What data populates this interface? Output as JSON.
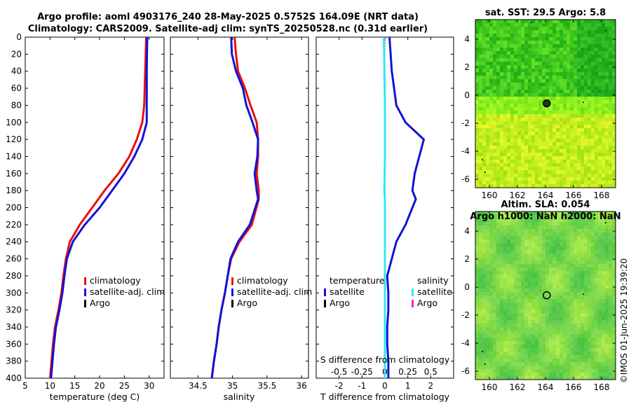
{
  "title": {
    "line1": "Argo profile: aoml 4903176_240 28-May-2025 0.5752S 164.09E (NRT data)",
    "line2": "Climatology: CARS2009. Satellite-adj clim: synTS_20250528.nc (0.31d earlier)"
  },
  "watermark": "©IMOS 01-Jun-2025 19:39:20",
  "colors": {
    "climatology": "#e81010",
    "satellite": "#1212d8",
    "argo": "#000000",
    "sat_salinity": "#33e6f0",
    "argo_salinity": "#ff22cc"
  },
  "chart_data": [
    {
      "id": "temperature",
      "type": "line",
      "xlabel": "temperature (deg C)",
      "xlim": [
        5,
        33
      ],
      "ylim": [
        400,
        0
      ],
      "xticks": [
        "5",
        "10",
        "15",
        "20",
        "25",
        "30"
      ],
      "yticks": [
        "0",
        "20",
        "40",
        "60",
        "80",
        "100",
        "120",
        "140",
        "160",
        "180",
        "200",
        "220",
        "240",
        "260",
        "280",
        "300",
        "320",
        "340",
        "360",
        "380",
        "400"
      ],
      "legend": [
        "climatology",
        "satellite-adj. clim",
        "Argo"
      ],
      "series": [
        {
          "name": "climatology",
          "color": "#e81010",
          "x": [
            29.4,
            29.3,
            29.2,
            29.1,
            29.0,
            28.6,
            27.5,
            26.0,
            23.8,
            21.0,
            18.5,
            16.0,
            14.0,
            13.2,
            12.7,
            12.3,
            11.7,
            11.0,
            10.6,
            10.3,
            10.0
          ],
          "y": [
            0,
            20,
            40,
            60,
            80,
            100,
            120,
            140,
            160,
            180,
            200,
            220,
            240,
            260,
            280,
            300,
            320,
            340,
            360,
            380,
            400
          ]
        },
        {
          "name": "satellite-adj. clim",
          "color": "#1212d8",
          "x": [
            29.6,
            29.55,
            29.5,
            29.5,
            29.5,
            29.5,
            28.6,
            27.0,
            25.0,
            22.5,
            20.0,
            17.0,
            14.6,
            13.4,
            12.9,
            12.5,
            11.9,
            11.2,
            10.8,
            10.5,
            10.2
          ],
          "y": [
            0,
            20,
            40,
            60,
            80,
            100,
            120,
            140,
            160,
            180,
            200,
            220,
            240,
            260,
            280,
            300,
            320,
            340,
            360,
            380,
            400
          ]
        }
      ]
    },
    {
      "id": "salinity",
      "type": "line",
      "xlabel": "salinity",
      "xlim": [
        34.1,
        36.1
      ],
      "ylim": [
        400,
        0
      ],
      "xticks": [
        "34.5",
        "35",
        "35.5",
        "36"
      ],
      "legend": [
        "climatology",
        "satellite-adj. clim",
        "Argo"
      ],
      "series": [
        {
          "name": "climatology",
          "color": "#e81010",
          "x": [
            35.03,
            35.05,
            35.08,
            35.18,
            35.26,
            35.35,
            35.37,
            35.37,
            35.35,
            35.38,
            35.38,
            35.28,
            35.1,
            34.98,
            34.93,
            34.89,
            34.84,
            34.8,
            34.77,
            34.73,
            34.7
          ],
          "y": [
            0,
            20,
            40,
            60,
            80,
            100,
            120,
            140,
            160,
            180,
            190,
            220,
            240,
            260,
            280,
            300,
            320,
            340,
            360,
            380,
            400
          ]
        },
        {
          "name": "satellite-adj. clim",
          "color": "#1212d8",
          "x": [
            34.98,
            34.99,
            35.05,
            35.15,
            35.2,
            35.29,
            35.37,
            35.36,
            35.32,
            35.35,
            35.37,
            35.25,
            35.08,
            34.97,
            34.93,
            34.89,
            34.84,
            34.8,
            34.77,
            34.73,
            34.7
          ],
          "y": [
            0,
            20,
            40,
            60,
            80,
            100,
            120,
            140,
            160,
            180,
            190,
            220,
            240,
            260,
            280,
            300,
            320,
            340,
            360,
            380,
            400
          ]
        }
      ]
    },
    {
      "id": "difference",
      "type": "line",
      "xlabel": "T difference from climatology",
      "xlim_T": [
        -3,
        3
      ],
      "ylim": [
        400,
        0
      ],
      "xticks": [
        "-2",
        "-1",
        "0",
        "1",
        "2"
      ],
      "top_axis_label": "S difference from climatology",
      "top_xticks": [
        "-0.5",
        "-0.25",
        "0",
        "0.25",
        "0.5"
      ],
      "legend_left_title": "temperature",
      "legend_right_title": "salinity",
      "legend_left": [
        "satellite",
        "Argo"
      ],
      "legend_right": [
        "satellite",
        "Argo"
      ],
      "series": [
        {
          "name": "temperature satellite",
          "color": "#1212d8",
          "x": [
            0.2,
            0.25,
            0.3,
            0.4,
            0.5,
            0.9,
            1.7,
            1.5,
            1.3,
            1.2,
            1.35,
            0.9,
            0.5,
            0.3,
            0.1,
            0.15,
            0.15,
            0.1,
            0.1,
            0.15,
            0.15
          ],
          "y": [
            0,
            20,
            40,
            60,
            80,
            100,
            120,
            140,
            160,
            180,
            190,
            220,
            240,
            260,
            280,
            300,
            320,
            340,
            360,
            380,
            400
          ]
        },
        {
          "name": "salinity satellite",
          "color": "#33e6f0",
          "x": [
            -0.05,
            -0.03,
            -0.02,
            -0.01,
            0,
            0,
            0,
            0,
            -0.01,
            -0.02,
            0,
            0,
            0,
            0,
            0,
            0,
            0,
            0,
            0,
            0,
            0
          ],
          "y": [
            0,
            20,
            40,
            60,
            80,
            100,
            120,
            140,
            160,
            180,
            190,
            220,
            240,
            260,
            280,
            300,
            320,
            340,
            360,
            380,
            400
          ]
        }
      ]
    },
    {
      "id": "sst_map",
      "type": "heatmap",
      "title": "sat. SST: 29.5 Argo: 5.8",
      "xticks": [
        "160",
        "162",
        "164",
        "166",
        "168"
      ],
      "yticks": [
        "4",
        "2",
        "0",
        "-2",
        "-4",
        "-6"
      ],
      "xlim": [
        159,
        169
      ],
      "ylim": [
        -6.6,
        5.4
      ],
      "marker": {
        "lon": 164.09,
        "lat": -0.58
      }
    },
    {
      "id": "sla_map",
      "type": "heatmap",
      "title": "Altim. SLA: 0.054",
      "subtitle": "Argo h1000: NaN h2000: NaN",
      "xticks": [
        "160",
        "162",
        "164",
        "166",
        "168"
      ],
      "yticks": [
        "4",
        "2",
        "0",
        "-2",
        "-4",
        "-6"
      ],
      "xlim": [
        159,
        169
      ],
      "ylim": [
        -6.6,
        5.4
      ],
      "marker": {
        "lon": 164.09,
        "lat": -0.58
      }
    }
  ]
}
